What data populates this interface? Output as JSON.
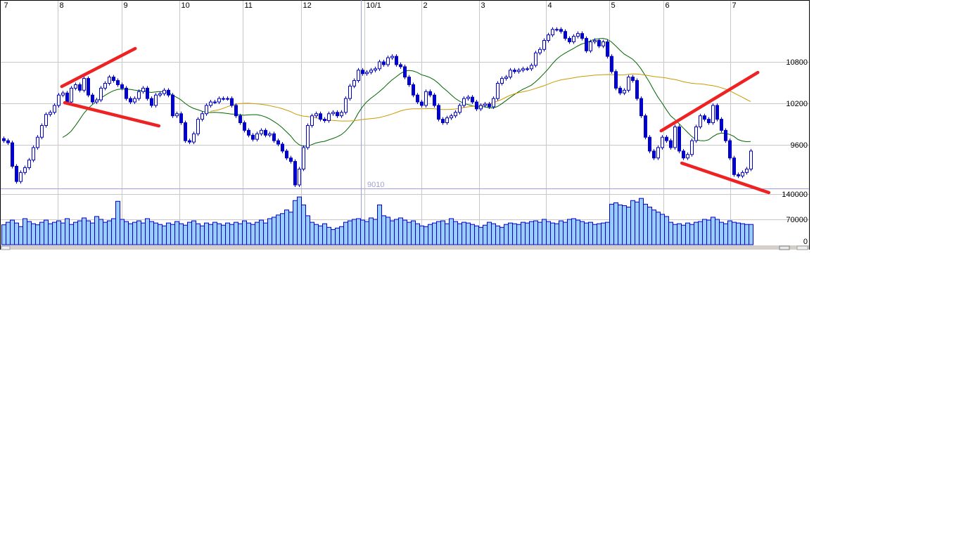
{
  "chart_data": {
    "type": "candlestick",
    "x_tick_labels": [
      {
        "label": "7",
        "index": 0
      },
      {
        "label": "8",
        "index": 13.2
      },
      {
        "label": "9",
        "index": 28.3
      },
      {
        "label": "10",
        "index": 42
      },
      {
        "label": "11",
        "index": 57
      },
      {
        "label": "12",
        "index": 70.8
      },
      {
        "label": "10/1",
        "index": 85.8
      },
      {
        "label": "2",
        "index": 99.3
      },
      {
        "label": "3",
        "index": 113
      },
      {
        "label": "4",
        "index": 128.8
      },
      {
        "label": "5",
        "index": 143.8
      },
      {
        "label": "6",
        "index": 156.7
      },
      {
        "label": "7",
        "index": 172.5
      }
    ],
    "price_axis": {
      "ticks": [
        10800,
        10200,
        9600
      ],
      "labels": [
        "10800",
        "10200",
        "9600"
      ]
    },
    "volume_axis": {
      "ticks": [
        140000,
        70000,
        0
      ],
      "labels": [
        "140000",
        "70000",
        "0"
      ]
    },
    "low_marker": {
      "value": 9010,
      "label": "9010"
    },
    "grid": true,
    "colors": {
      "candle": "#0000cc",
      "volume_fill": "#99ccff",
      "ma_short": "#006600",
      "ma_long": "#cc9900",
      "trendline": "#ee2222",
      "grid": "#c8c8c8",
      "low_line": "#a0a0e0"
    },
    "close": [
      9660,
      9630,
      9290,
      9070,
      9200,
      9270,
      9380,
      9560,
      9710,
      9880,
      10040,
      10070,
      10170,
      10320,
      10350,
      10220,
      10420,
      10470,
      10390,
      10560,
      10320,
      10220,
      10250,
      10420,
      10490,
      10580,
      10530,
      10470,
      10420,
      10270,
      10220,
      10270,
      10370,
      10420,
      10270,
      10170,
      10320,
      10340,
      10390,
      10320,
      10020,
      10050,
      9920,
      9660,
      9640,
      9760,
      9970,
      10050,
      10170,
      10220,
      10220,
      10270,
      10270,
      10270,
      10170,
      10020,
      9920,
      9810,
      9740,
      9680,
      9760,
      9810,
      9740,
      9760,
      9660,
      9610,
      9510,
      9410,
      9360,
      9020,
      9250,
      9560,
      9880,
      10020,
      10050,
      9970,
      9950,
      10050,
      10070,
      10020,
      10070,
      10270,
      10450,
      10530,
      10680,
      10630,
      10650,
      10680,
      10700,
      10800,
      10760,
      10860,
      10880,
      10760,
      10730,
      10580,
      10470,
      10320,
      10220,
      10170,
      10370,
      10320,
      10170,
      9970,
      9920,
      9990,
      10020,
      10070,
      10170,
      10270,
      10290,
      10220,
      10120,
      10170,
      10190,
      10150,
      10270,
      10490,
      10560,
      10580,
      10680,
      10660,
      10680,
      10700,
      10700,
      10750,
      10930,
      10980,
      11110,
      11190,
      11270,
      11270,
      11240,
      11140,
      11090,
      11170,
      11210,
      11140,
      10960,
      11090,
      11110,
      11030,
      11090,
      10880,
      10660,
      10420,
      10350,
      10390,
      10580,
      10530,
      10270,
      10020,
      9710,
      9510,
      9410,
      9560,
      9710,
      9660,
      9560,
      9860,
      9510,
      9410,
      9460,
      9660,
      9860,
      10020,
      9970,
      9920,
      10170,
      9970,
      9810,
      9660,
      9410,
      9170,
      9150,
      9200,
      9250,
      9510
    ],
    "volume": [
      55000,
      62000,
      68000,
      60000,
      50000,
      72000,
      64000,
      58000,
      55000,
      62000,
      68000,
      58000,
      62000,
      66000,
      60000,
      72000,
      56000,
      62000,
      66000,
      74000,
      66000,
      60000,
      78000,
      70000,
      62000,
      66000,
      72000,
      120000,
      70000,
      64000,
      58000,
      62000,
      66000,
      60000,
      72000,
      64000,
      60000,
      56000,
      52000,
      60000,
      56000,
      64000,
      58000,
      54000,
      62000,
      66000,
      58000,
      52000,
      60000,
      56000,
      62000,
      58000,
      54000,
      60000,
      56000,
      62000,
      58000,
      66000,
      60000,
      56000,
      62000,
      68000,
      60000,
      72000,
      76000,
      82000,
      86000,
      96000,
      90000,
      122000,
      132000,
      110000,
      80000,
      62000,
      56000,
      52000,
      58000,
      48000,
      42000,
      46000,
      50000,
      62000,
      66000,
      70000,
      72000,
      68000,
      64000,
      74000,
      70000,
      110000,
      80000,
      76000,
      66000,
      70000,
      74000,
      68000,
      62000,
      66000,
      58000,
      52000,
      50000,
      56000,
      60000,
      64000,
      66000,
      58000,
      72000,
      64000,
      58000,
      62000,
      60000,
      56000,
      52000,
      48000,
      54000,
      62000,
      58000,
      52000,
      48000,
      56000,
      60000,
      58000,
      56000,
      62000,
      60000,
      64000,
      66000,
      62000,
      70000,
      64000,
      60000,
      58000,
      66000,
      62000,
      70000,
      72000,
      68000,
      64000,
      60000,
      62000,
      56000,
      58000,
      60000,
      62000,
      112000,
      116000,
      110000,
      108000,
      104000,
      122000,
      118000,
      128000,
      112000,
      104000,
      96000,
      90000,
      84000,
      78000,
      62000,
      56000,
      58000,
      54000,
      60000,
      56000,
      62000,
      64000,
      70000,
      68000,
      76000,
      70000,
      62000,
      58000,
      66000,
      62000,
      60000,
      58000,
      56000,
      56000
    ],
    "trendlines": [
      {
        "from": {
          "index": 13.8,
          "price": 10444
        },
        "to": {
          "index": 31.2,
          "price": 10993
        }
      },
      {
        "from": {
          "index": 14.5,
          "price": 10210
        },
        "to": {
          "index": 36.8,
          "price": 9874
        }
      },
      {
        "from": {
          "index": 155.8,
          "price": 9803
        },
        "to": {
          "index": 178.7,
          "price": 10647
        }
      },
      {
        "from": {
          "index": 160.7,
          "price": 9336
        },
        "to": {
          "index": 181.3,
          "price": 8909
        }
      }
    ]
  }
}
